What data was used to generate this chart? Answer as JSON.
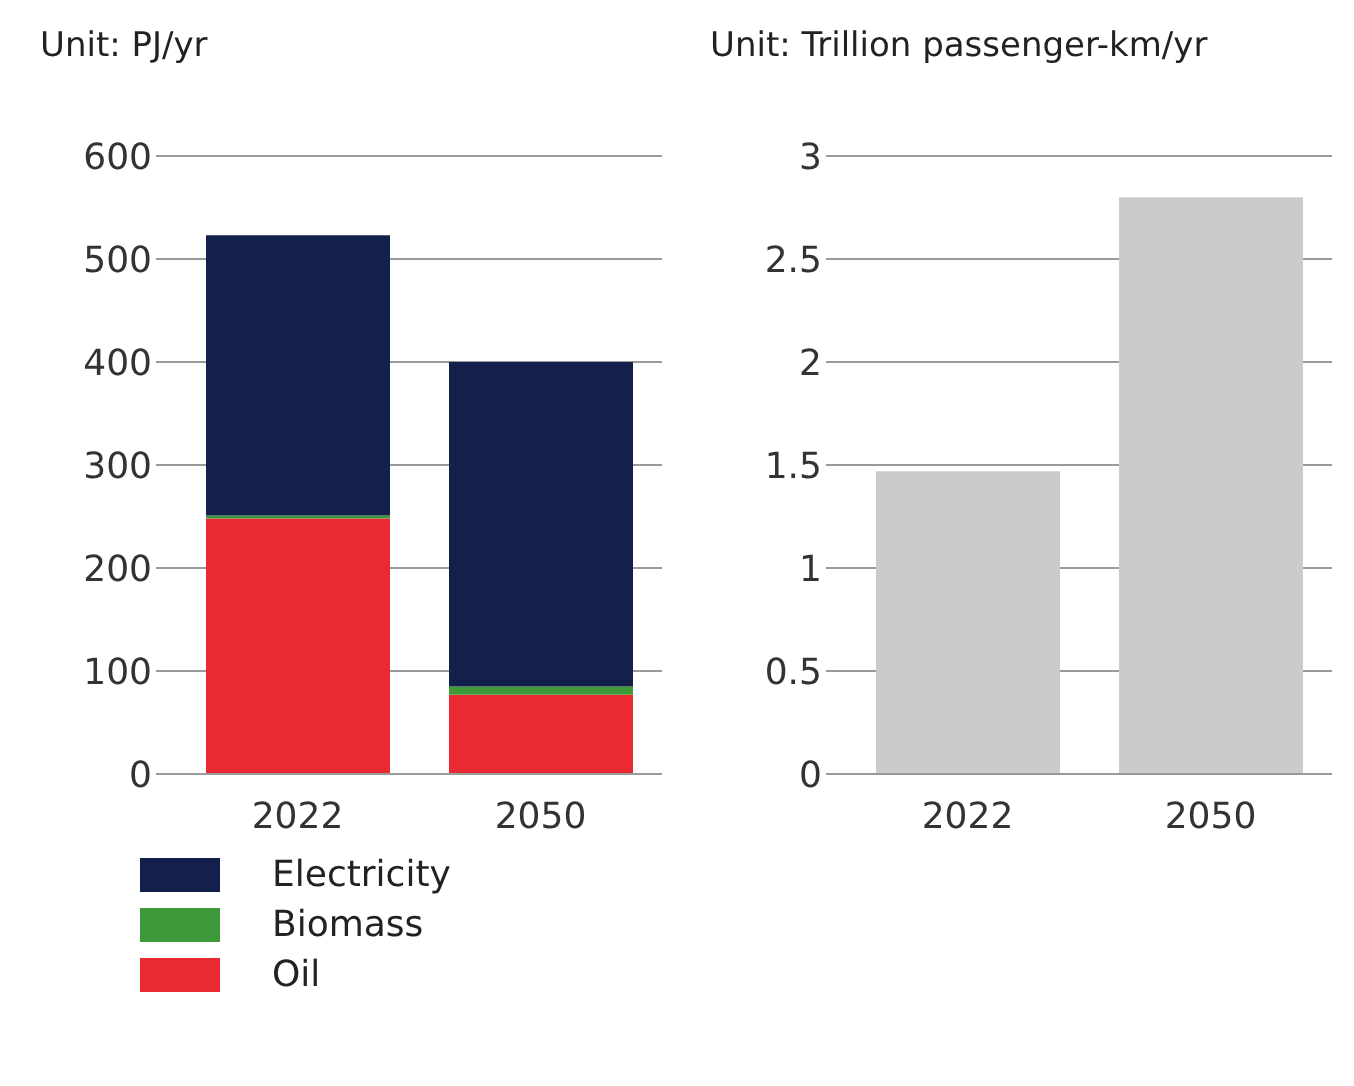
{
  "chart_data": [
    {
      "type": "bar",
      "ylabel": "Unit: PJ/yr",
      "categories": [
        "2022",
        "2050"
      ],
      "stacked": true,
      "series": [
        {
          "name": "Oil",
          "color": "#e92a33",
          "values": [
            248,
            77
          ]
        },
        {
          "name": "Biomass",
          "color": "#3e9a38",
          "values": [
            3,
            8
          ]
        },
        {
          "name": "Electricity",
          "color": "#12204b",
          "values": [
            272,
            315
          ]
        }
      ],
      "ylim": [
        0,
        600
      ],
      "yticks": [
        0,
        100,
        200,
        300,
        400,
        500,
        600
      ],
      "grid": "y",
      "legend": "bottom"
    },
    {
      "type": "bar",
      "ylabel": "Unit: Trillion passenger-km/yr",
      "categories": [
        "2022",
        "2050"
      ],
      "values": [
        1.47,
        2.8
      ],
      "color": "#cccbc9",
      "ylim": [
        0,
        3
      ],
      "yticks": [
        0,
        0.5,
        1,
        1.5,
        2,
        2.5,
        3
      ],
      "grid": "y"
    }
  ]
}
